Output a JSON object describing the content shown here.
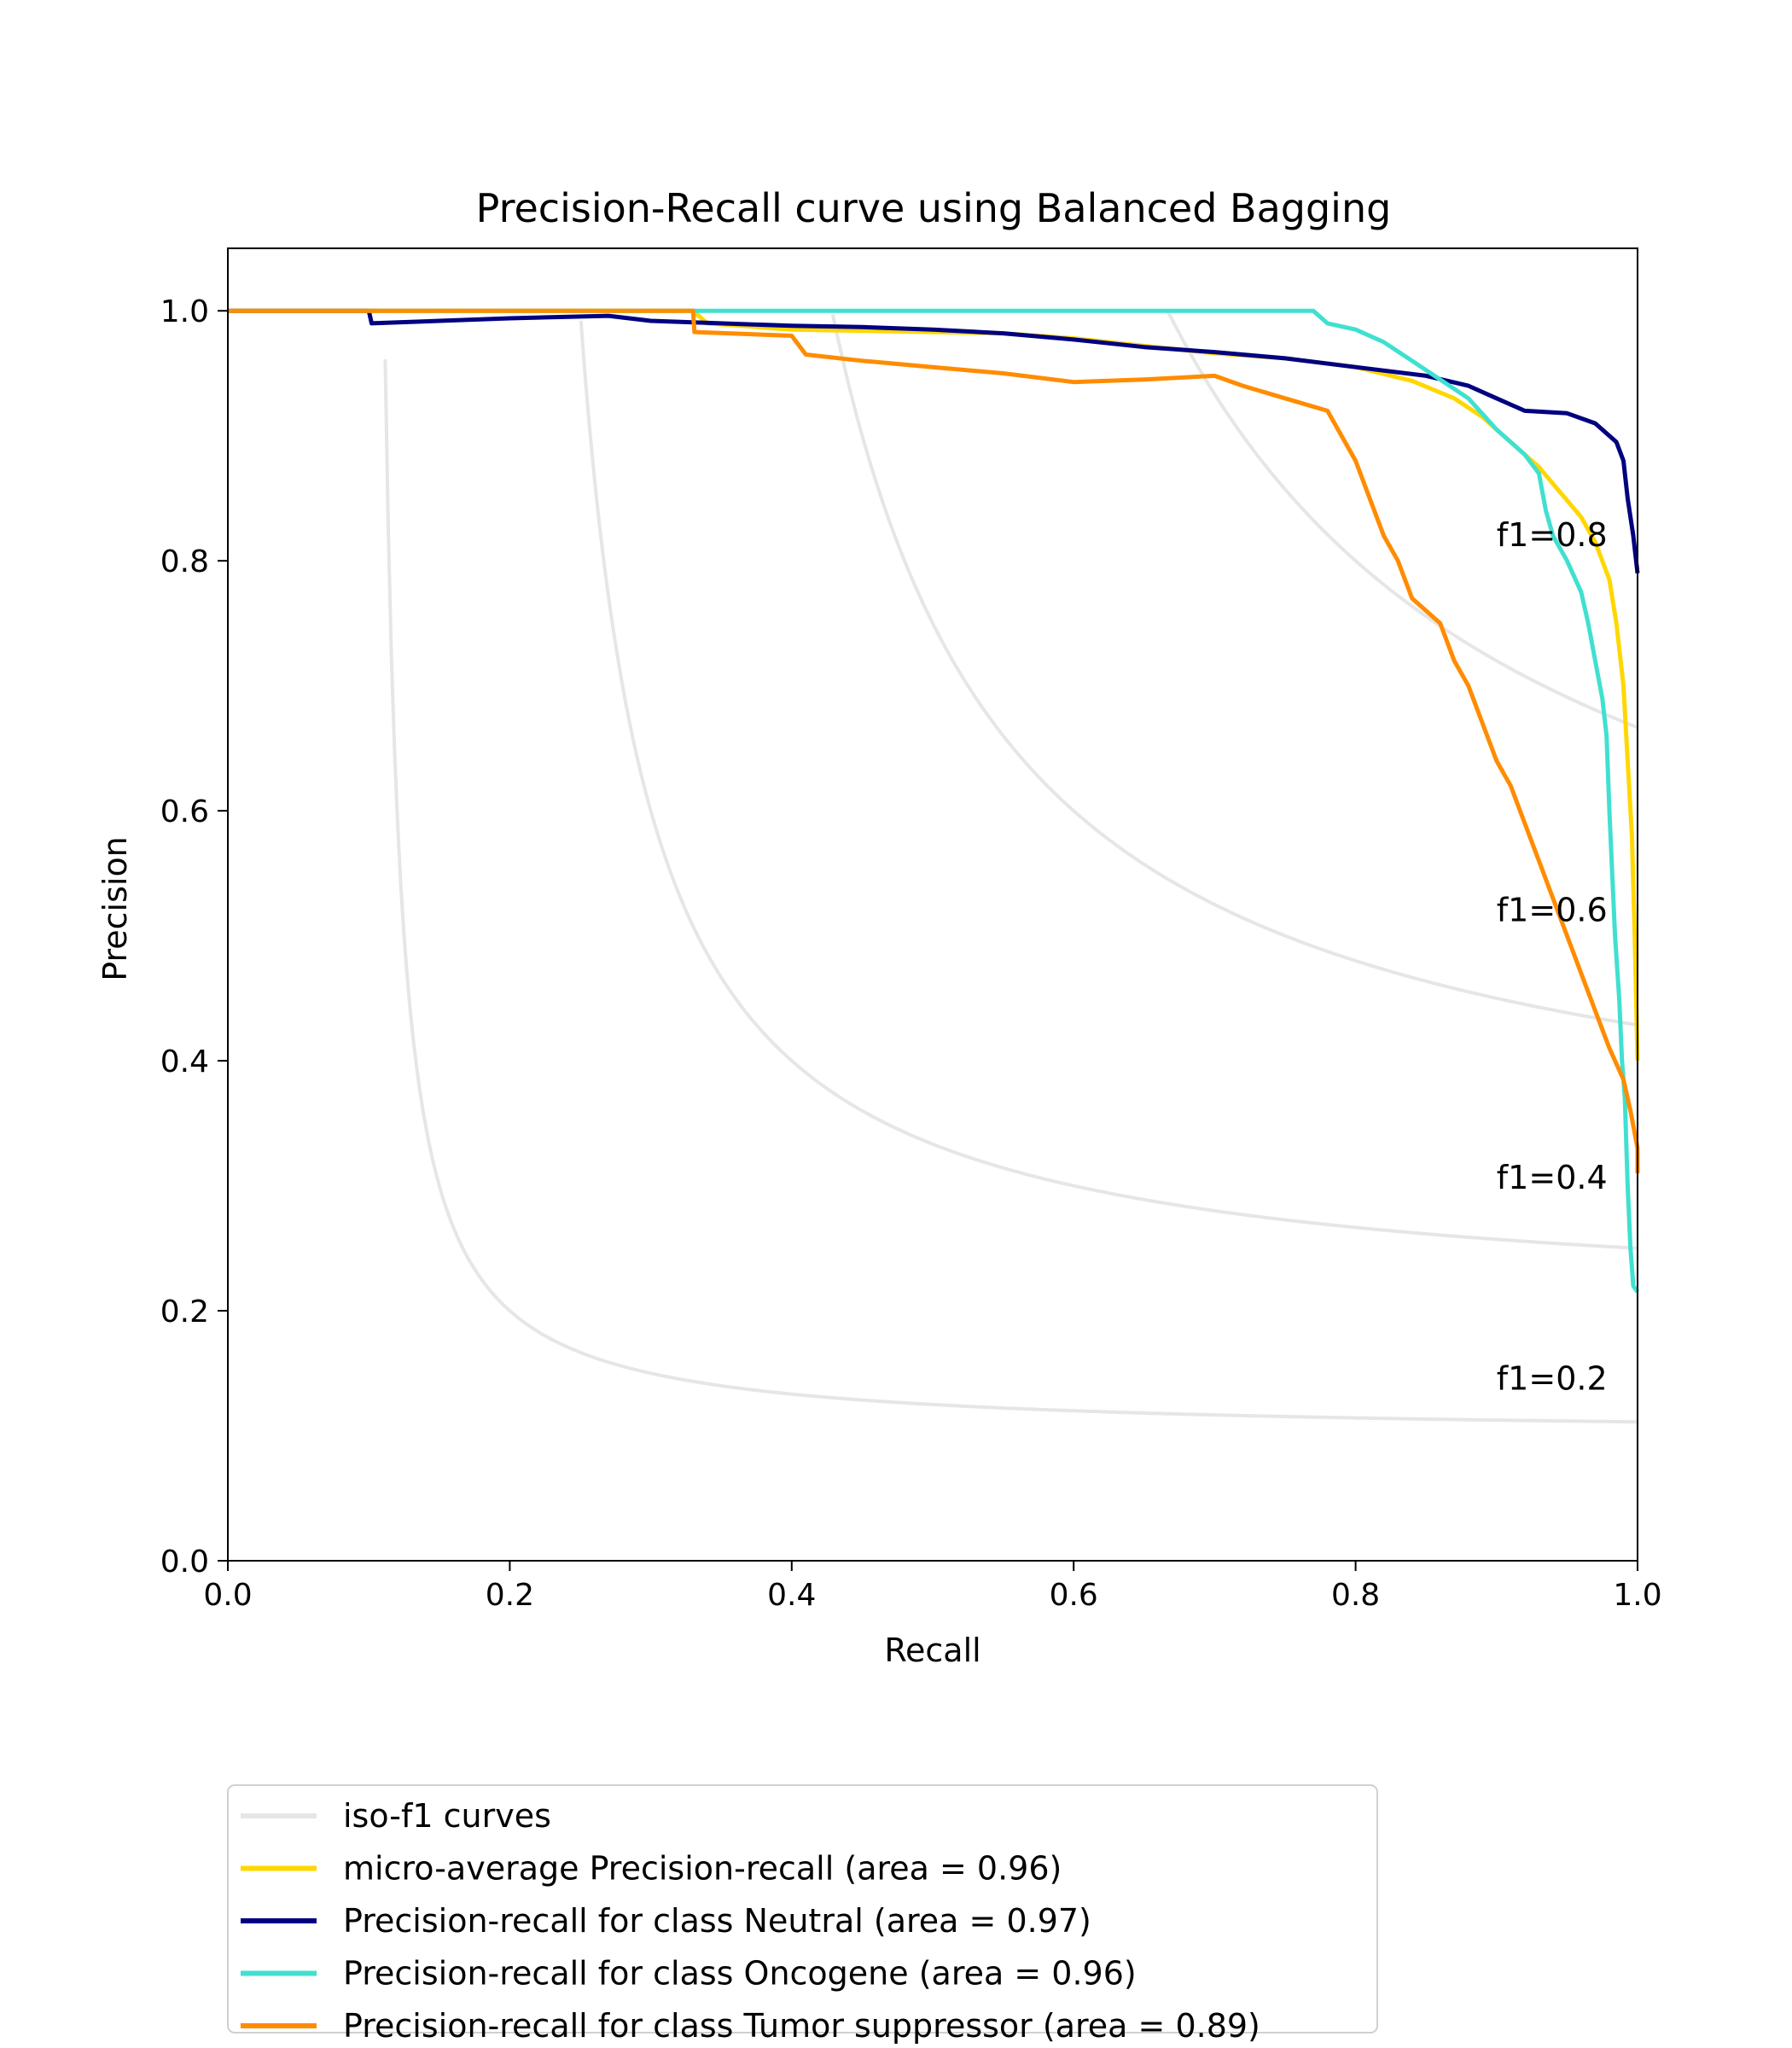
{
  "chart_data": {
    "type": "line",
    "title": "Precision-Recall curve using Balanced Bagging",
    "xlabel": "Recall",
    "ylabel": "Precision",
    "xlim": [
      0.0,
      1.0
    ],
    "ylim": [
      0.0,
      1.05
    ],
    "xticks": [
      0.0,
      0.2,
      0.4,
      0.6,
      0.8,
      1.0
    ],
    "xtick_labels": [
      "0.0",
      "0.2",
      "0.4",
      "0.6",
      "0.8",
      "1.0"
    ],
    "yticks": [
      0.0,
      0.2,
      0.4,
      0.6,
      0.8,
      1.0
    ],
    "ytick_labels": [
      "0.0",
      "0.2",
      "0.4",
      "0.6",
      "0.8",
      "1.0"
    ],
    "grid": false,
    "legend_position": "below plot, left",
    "iso_f1": {
      "legend_label": "iso-f1 curves",
      "color": "#e6e6e6",
      "levels": [
        0.2,
        0.4,
        0.6,
        0.8
      ],
      "labels": [
        "f1=0.2",
        "f1=0.4",
        "f1=0.6",
        "f1=0.8"
      ]
    },
    "series": [
      {
        "name": "micro-average Precision-recall (area = 0.96)",
        "color": "#ffd700",
        "points": [
          [
            0.0,
            1.0
          ],
          [
            0.33,
            1.0
          ],
          [
            0.34,
            0.99
          ],
          [
            0.4,
            0.985
          ],
          [
            0.5,
            0.983
          ],
          [
            0.55,
            0.982
          ],
          [
            0.6,
            0.978
          ],
          [
            0.65,
            0.972
          ],
          [
            0.7,
            0.966
          ],
          [
            0.75,
            0.962
          ],
          [
            0.8,
            0.955
          ],
          [
            0.84,
            0.944
          ],
          [
            0.87,
            0.93
          ],
          [
            0.89,
            0.915
          ],
          [
            0.91,
            0.895
          ],
          [
            0.93,
            0.875
          ],
          [
            0.945,
            0.855
          ],
          [
            0.96,
            0.835
          ],
          [
            0.97,
            0.815
          ],
          [
            0.98,
            0.785
          ],
          [
            0.985,
            0.75
          ],
          [
            0.99,
            0.7
          ],
          [
            0.993,
            0.64
          ],
          [
            0.996,
            0.58
          ],
          [
            0.998,
            0.5
          ],
          [
            1.0,
            0.4
          ]
        ]
      },
      {
        "name": "Precision-recall for class Neutral (area = 0.97)",
        "color": "#000080",
        "points": [
          [
            0.0,
            1.0
          ],
          [
            0.1,
            1.0
          ],
          [
            0.102,
            0.99
          ],
          [
            0.2,
            0.994
          ],
          [
            0.27,
            0.996
          ],
          [
            0.3,
            0.992
          ],
          [
            0.4,
            0.988
          ],
          [
            0.45,
            0.987
          ],
          [
            0.5,
            0.985
          ],
          [
            0.55,
            0.982
          ],
          [
            0.6,
            0.977
          ],
          [
            0.65,
            0.971
          ],
          [
            0.7,
            0.967
          ],
          [
            0.75,
            0.962
          ],
          [
            0.8,
            0.955
          ],
          [
            0.85,
            0.948
          ],
          [
            0.88,
            0.94
          ],
          [
            0.9,
            0.93
          ],
          [
            0.92,
            0.92
          ],
          [
            0.95,
            0.918
          ],
          [
            0.97,
            0.91
          ],
          [
            0.985,
            0.895
          ],
          [
            0.99,
            0.88
          ],
          [
            0.993,
            0.85
          ],
          [
            0.997,
            0.82
          ],
          [
            1.0,
            0.79
          ]
        ]
      },
      {
        "name": "Precision-recall for class Oncogene (area = 0.96)",
        "color": "#40e0d0",
        "points": [
          [
            0.0,
            1.0
          ],
          [
            0.77,
            1.0
          ],
          [
            0.78,
            0.99
          ],
          [
            0.8,
            0.985
          ],
          [
            0.82,
            0.975
          ],
          [
            0.84,
            0.96
          ],
          [
            0.86,
            0.945
          ],
          [
            0.88,
            0.93
          ],
          [
            0.9,
            0.905
          ],
          [
            0.92,
            0.885
          ],
          [
            0.93,
            0.87
          ],
          [
            0.935,
            0.84
          ],
          [
            0.94,
            0.82
          ],
          [
            0.95,
            0.8
          ],
          [
            0.96,
            0.775
          ],
          [
            0.965,
            0.75
          ],
          [
            0.97,
            0.72
          ],
          [
            0.975,
            0.69
          ],
          [
            0.978,
            0.66
          ],
          [
            0.98,
            0.6
          ],
          [
            0.982,
            0.55
          ],
          [
            0.984,
            0.5
          ],
          [
            0.987,
            0.45
          ],
          [
            0.989,
            0.4
          ],
          [
            0.991,
            0.37
          ],
          [
            0.993,
            0.3
          ],
          [
            0.995,
            0.25
          ],
          [
            0.997,
            0.22
          ],
          [
            1.0,
            0.215
          ]
        ]
      },
      {
        "name": "Precision-recall for class Tumor suppressor (area = 0.89)",
        "color": "#ff8c00",
        "points": [
          [
            0.0,
            1.0
          ],
          [
            0.33,
            1.0
          ],
          [
            0.331,
            0.983
          ],
          [
            0.4,
            0.98
          ],
          [
            0.41,
            0.965
          ],
          [
            0.45,
            0.96
          ],
          [
            0.5,
            0.955
          ],
          [
            0.55,
            0.95
          ],
          [
            0.6,
            0.943
          ],
          [
            0.65,
            0.945
          ],
          [
            0.7,
            0.948
          ],
          [
            0.72,
            0.94
          ],
          [
            0.75,
            0.93
          ],
          [
            0.78,
            0.92
          ],
          [
            0.8,
            0.88
          ],
          [
            0.81,
            0.85
          ],
          [
            0.82,
            0.82
          ],
          [
            0.83,
            0.8
          ],
          [
            0.84,
            0.77
          ],
          [
            0.86,
            0.75
          ],
          [
            0.87,
            0.72
          ],
          [
            0.88,
            0.7
          ],
          [
            0.89,
            0.67
          ],
          [
            0.9,
            0.64
          ],
          [
            0.91,
            0.62
          ],
          [
            0.92,
            0.59
          ],
          [
            0.93,
            0.56
          ],
          [
            0.94,
            0.53
          ],
          [
            0.95,
            0.5
          ],
          [
            0.96,
            0.47
          ],
          [
            0.97,
            0.44
          ],
          [
            0.98,
            0.41
          ],
          [
            0.99,
            0.385
          ],
          [
            0.995,
            0.36
          ],
          [
            1.0,
            0.33
          ],
          [
            1.0,
            0.31
          ]
        ]
      }
    ]
  }
}
